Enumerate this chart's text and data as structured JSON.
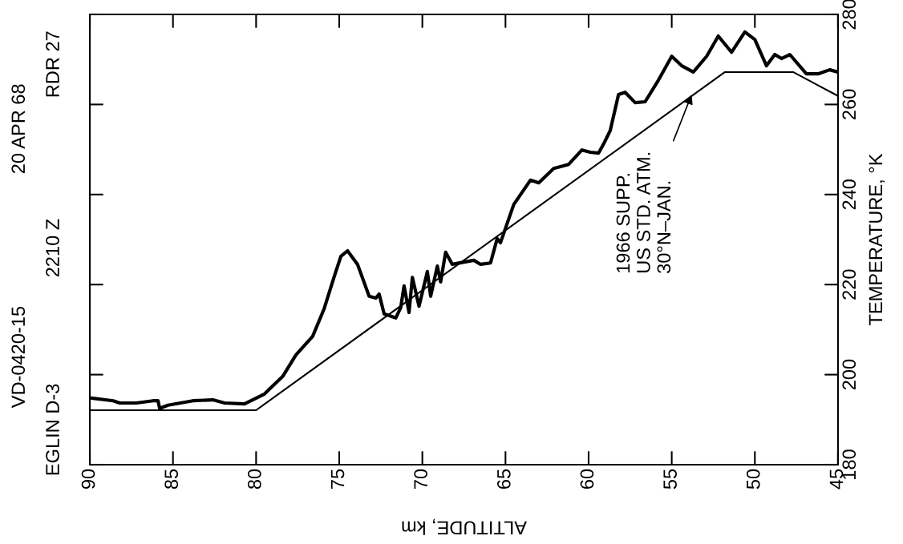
{
  "chart_data": {
    "type": "line",
    "xlabel": "ALTITUDE, km",
    "ylabel": "TEMPERATURE, °K",
    "xlim": [
      90,
      45
    ],
    "xticks": [
      90,
      85,
      80,
      75,
      70,
      65,
      60,
      55,
      50,
      45
    ],
    "ylim": [
      180,
      280
    ],
    "yticks": [
      180,
      200,
      220,
      240,
      260,
      280
    ],
    "grid": false,
    "legend": false,
    "annotations": [
      "VD-0420-15",
      "20 APR 68",
      "EGLIN D-3",
      "2210 Z",
      "RDR 27",
      {
        "text": "1966 SUPP.\nUS STD. ATM.\n30°N–JAN.",
        "x": 53.8,
        "y": 262.2
      }
    ],
    "series": [
      {
        "color": "#000000",
        "x": [
          89.9,
          88.6,
          88.2,
          87.2,
          86.2,
          85.9,
          85.8,
          85.3,
          83.8,
          82.6,
          81.9,
          80.7,
          79.5,
          78.4,
          77.6,
          76.6,
          75.9,
          75.3,
          74.9,
          74.5,
          73.9,
          73.2,
          72.8,
          72.6,
          72.3,
          71.6,
          71.3,
          71.1,
          70.8,
          70.6,
          70.2,
          69.7,
          69.5,
          69.1,
          68.9,
          68.6,
          68.2,
          66.9,
          66.5,
          65.9,
          65.5,
          65.3,
          64.5,
          63.5,
          63.0,
          62.1,
          61.2,
          60.4,
          59.9,
          59.4,
          59.1,
          58.7,
          58.2,
          57.8,
          57.2,
          56.6,
          55.8,
          55.0,
          54.4,
          53.7,
          52.9,
          52.2,
          51.4,
          50.6,
          50.0,
          49.3,
          48.8,
          48.4,
          47.9,
          46.9,
          46.2,
          45.5,
          45.0
        ],
        "values": [
          194.8,
          194.2,
          193.7,
          193.7,
          194.2,
          194.2,
          192.5,
          193.2,
          194.2,
          194.4,
          193.7,
          193.5,
          195.7,
          199.6,
          204.4,
          208.5,
          214.7,
          221.8,
          226.3,
          227.5,
          224.5,
          217.4,
          217.0,
          217.9,
          213.5,
          212.6,
          214.9,
          219.7,
          213.8,
          221.6,
          215.2,
          222.9,
          217.4,
          224.1,
          220.6,
          227.2,
          224.5,
          225.4,
          224.5,
          224.8,
          230.2,
          229.3,
          237.8,
          243.2,
          242.6,
          245.8,
          246.7,
          249.9,
          249.4,
          249.2,
          251.2,
          254.2,
          262.2,
          262.7,
          260.4,
          260.6,
          265.4,
          270.7,
          268.6,
          267.2,
          270.7,
          275.2,
          271.6,
          276.1,
          274.4,
          268.6,
          271.1,
          270.2,
          271.1,
          266.8,
          266.8,
          267.7,
          267.2
        ]
      },
      {
        "color": "#000000",
        "x": [
          90,
          80,
          51.8,
          47.7,
          45
        ],
        "values": [
          192.1,
          192.1,
          267.2,
          267.2,
          261.9
        ]
      }
    ]
  }
}
